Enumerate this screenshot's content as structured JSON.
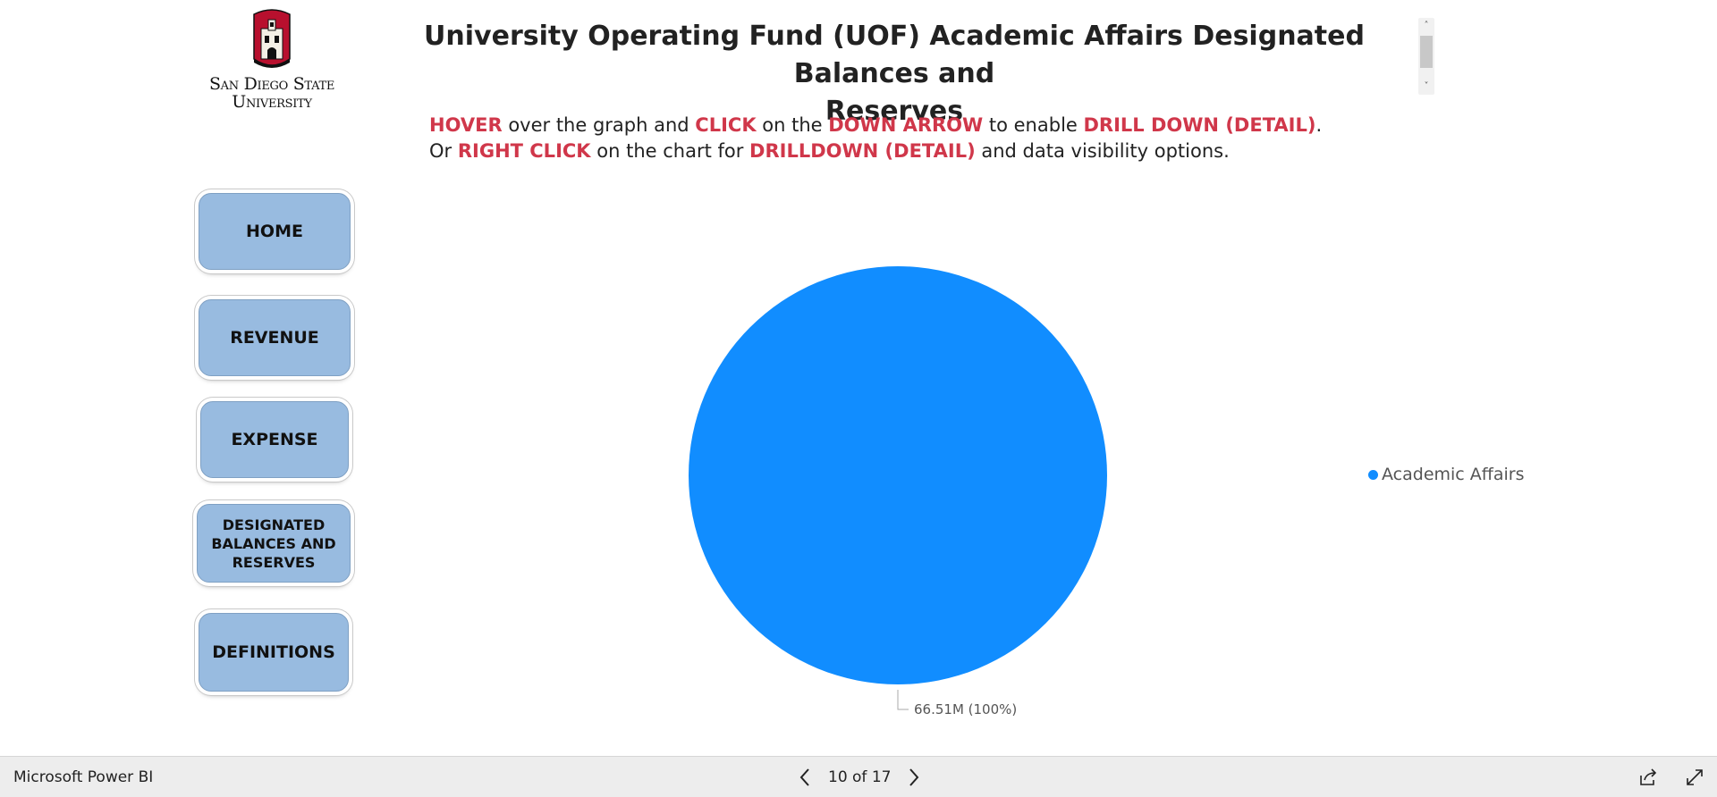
{
  "logo": {
    "line1": "San Diego State",
    "line2": "University"
  },
  "title": {
    "line1": "University Operating Fund (UOF) Academic Affairs Designated Balances and",
    "line2": "Reserves"
  },
  "instructions": {
    "l1_hover": "HOVER",
    "l1_t1": " over the graph and ",
    "l1_click": "CLICK",
    "l1_t2": " on the ",
    "l1_arrow": "DOWN ARROW",
    "l1_t3": " to enable ",
    "l1_drill": "DRILL DOWN (DETAIL)",
    "l1_t4": ".",
    "l2_t1": "Or ",
    "l2_right": "RIGHT CLICK",
    "l2_t2": " on the chart for ",
    "l2_drill": "DRILLDOWN (DETAIL)",
    "l2_t3": " and data visibility options."
  },
  "nav": {
    "home": "HOME",
    "revenue": "REVENUE",
    "expense": "EXPENSE",
    "designated_1": "DESIGNATED",
    "designated_2": "BALANCES AND",
    "designated_3": "RESERVES",
    "definitions": "DEFINITIONS"
  },
  "chart_data": {
    "type": "pie",
    "title": "",
    "slices": [
      {
        "name": "Academic Affairs",
        "value": 66.51,
        "unit": "M",
        "percent": 100,
        "label": "66.51M (100%)",
        "color": "#118dff"
      }
    ],
    "legend_position": "right"
  },
  "legend": {
    "item1": "Academic Affairs"
  },
  "colors": {
    "accent_red": "#d0374a",
    "button_blue": "#98bbe0",
    "pie_blue": "#118dff"
  },
  "bottombar": {
    "brand": "Microsoft Power BI",
    "page_label": "10 of 17",
    "prev_icon": "chevron-left-icon",
    "next_icon": "chevron-right-icon",
    "share_icon": "share-icon",
    "fullscreen_icon": "expand-icon"
  }
}
